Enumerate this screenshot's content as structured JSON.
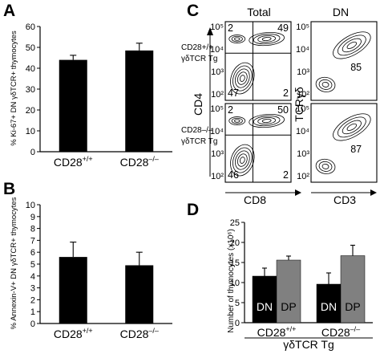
{
  "panels": {
    "A": {
      "label": "A",
      "chart_data": {
        "type": "bar",
        "categories": [
          "CD28+/+",
          "CD28–/–"
        ],
        "values": [
          44,
          48.5
        ],
        "errors": [
          2.2,
          3.5
        ],
        "ylabel": "% Ki-67+ DN γδTCR+ thymocytes",
        "ylim": [
          0,
          60
        ],
        "yticks": [
          "0",
          "10",
          "20",
          "30",
          "40",
          "50",
          "60"
        ]
      }
    },
    "B": {
      "label": "B",
      "chart_data": {
        "type": "bar",
        "categories": [
          "CD28+/+",
          "CD28–/–"
        ],
        "values": [
          5.6,
          4.9
        ],
        "errors": [
          1.25,
          1.1
        ],
        "ylabel": "% Annexin-V+ DN γδTCR+ thymocytes",
        "ylim": [
          0,
          10
        ],
        "yticks": [
          "0",
          "1",
          "2",
          "3",
          "4",
          "5",
          "6",
          "7",
          "8",
          "9",
          "10"
        ]
      }
    },
    "C": {
      "label": "C",
      "col_total": "Total",
      "col_dn": "DN",
      "row1_label_a": "CD28+/+",
      "row1_label_b": "γδTCR Tg",
      "row2_label_a": "CD28–/–",
      "row2_label_b": "γδTCR Tg",
      "axis_cd4": "CD4",
      "axis_cd8": "CD8",
      "axis_tcr": "TCRγδ",
      "axis_cd3": "CD3",
      "q_r1_ul": "2",
      "q_r1_ur": "49",
      "q_r1_ll": "47",
      "q_r1_lr": "2",
      "q_r2_ul": "2",
      "q_r2_ur": "50",
      "q_r2_ll": "46",
      "q_r2_lr": "2",
      "dn_r1": "85",
      "dn_r2": "87",
      "tick_labels": [
        "10²",
        "10³",
        "10⁴",
        "10⁵"
      ]
    },
    "D": {
      "label": "D",
      "chart_data": {
        "type": "bar",
        "categories": [
          "CD28+/+",
          "CD28–/–"
        ],
        "series": [
          {
            "name": "DN",
            "values": [
              11.6,
              9.6
            ],
            "errors": [
              2.0,
              2.8
            ],
            "color": "#000000"
          },
          {
            "name": "DP",
            "values": [
              15.6,
              16.7
            ],
            "errors": [
              1.0,
              2.6
            ],
            "color": "#808080"
          }
        ],
        "ylabel": "Number of thymocytes (x10⁶)",
        "xlabel": "γδTCR Tg",
        "ylim": [
          0,
          25
        ],
        "yticks": [
          "0",
          "5",
          "10",
          "15",
          "20",
          "25"
        ]
      }
    }
  }
}
